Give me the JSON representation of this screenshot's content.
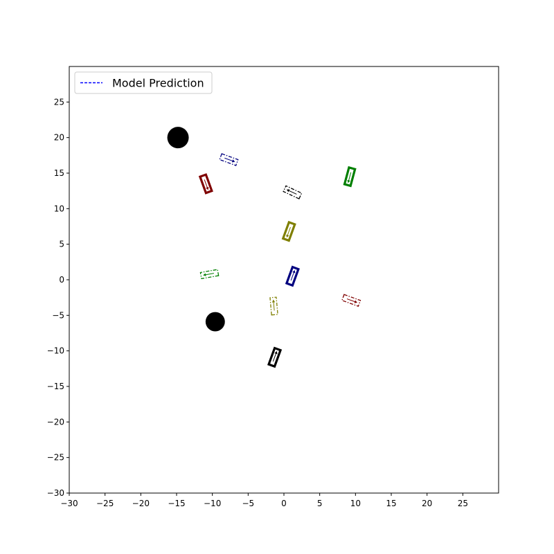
{
  "chart_data": {
    "type": "scatter",
    "title": "",
    "xlabel": "",
    "ylabel": "",
    "xlim": [
      -30,
      30
    ],
    "ylim": [
      -30,
      30
    ],
    "xticks": [
      -30,
      -25,
      -20,
      -15,
      -10,
      -5,
      0,
      5,
      10,
      15,
      20,
      25
    ],
    "yticks": [
      -30,
      -25,
      -20,
      -15,
      -10,
      -5,
      0,
      5,
      10,
      15,
      20,
      25
    ],
    "xtick_labels": [
      "−30",
      "−25",
      "−20",
      "−15",
      "−10",
      "−5",
      "0",
      "5",
      "10",
      "15",
      "20",
      "25"
    ],
    "ytick_labels": [
      "−30",
      "−25",
      "−20",
      "−15",
      "−10",
      "−5",
      "0",
      "5",
      "10",
      "15",
      "20",
      "25"
    ],
    "grid": false,
    "legend": {
      "placement": "top-left",
      "entries": [
        {
          "label": "Model Prediction",
          "color": "#0000ff",
          "style": "dashed"
        }
      ]
    },
    "obstacles": [
      {
        "x": -14.8,
        "y": 20.0,
        "radius": 1.5,
        "color": "#000000"
      },
      {
        "x": -9.6,
        "y": -5.9,
        "radius": 1.35,
        "color": "#000000"
      }
    ],
    "vehicles": [
      {
        "color": "#00007f",
        "style": "solid",
        "x": 1.2,
        "y": 0.5,
        "heading_deg": 70
      },
      {
        "color": "#00007f",
        "style": "dashed",
        "x": -7.7,
        "y": 16.9,
        "heading_deg": -20
      },
      {
        "color": "#7f0000",
        "style": "solid",
        "x": -10.9,
        "y": 13.5,
        "heading_deg": -70
      },
      {
        "color": "#7f0000",
        "style": "dashed",
        "x": 9.4,
        "y": -2.9,
        "heading_deg": -20
      },
      {
        "color": "#007f00",
        "style": "solid",
        "x": 9.2,
        "y": 14.5,
        "heading_deg": -105
      },
      {
        "color": "#007f00",
        "style": "dashed",
        "x": -10.4,
        "y": 0.8,
        "heading_deg": 190
      },
      {
        "color": "#7f7f00",
        "style": "solid",
        "x": 0.7,
        "y": 6.8,
        "heading_deg": 250
      },
      {
        "color": "#7f7f00",
        "style": "dashed",
        "x": -1.4,
        "y": -3.7,
        "heading_deg": 95
      },
      {
        "color": "#000000",
        "style": "solid",
        "x": -1.3,
        "y": -10.9,
        "heading_deg": 70
      },
      {
        "color": "#000000",
        "style": "dashed",
        "x": 1.2,
        "y": 12.3,
        "heading_deg": 155
      }
    ]
  }
}
